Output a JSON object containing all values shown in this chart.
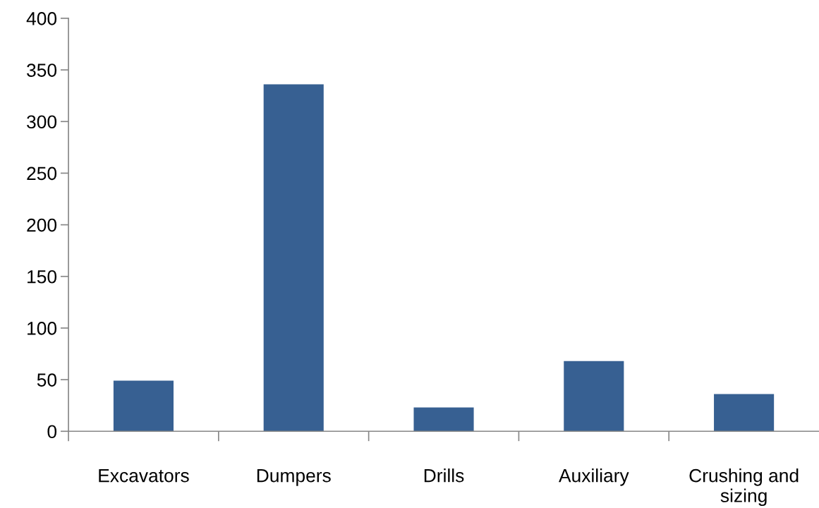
{
  "chart_data": {
    "type": "bar",
    "categories": [
      "Excavators",
      "Dumpers",
      "Drills",
      "Auxiliary",
      "Crushing and sizing"
    ],
    "values": [
      49,
      336,
      23,
      68,
      36
    ],
    "color": "#376092",
    "ylim": [
      0,
      400
    ],
    "yticks": [
      0,
      50,
      100,
      150,
      200,
      250,
      300,
      350,
      400
    ],
    "grid": false,
    "legend": false
  }
}
